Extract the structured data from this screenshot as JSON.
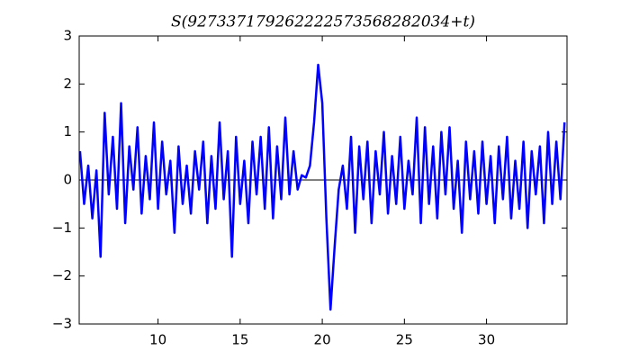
{
  "chart_data": {
    "type": "line",
    "title": "S(927337179262222573568282034+t)",
    "x": [
      5.25,
      5.5,
      5.75,
      6.0,
      6.25,
      6.5,
      6.75,
      7.0,
      7.25,
      7.5,
      7.75,
      8.0,
      8.25,
      8.5,
      8.75,
      9.0,
      9.25,
      9.5,
      9.75,
      10.0,
      10.25,
      10.5,
      10.75,
      11.0,
      11.25,
      11.5,
      11.75,
      12.0,
      12.25,
      12.5,
      12.75,
      13.0,
      13.25,
      13.5,
      13.75,
      14.0,
      14.25,
      14.5,
      14.75,
      15.0,
      15.25,
      15.5,
      15.75,
      16.0,
      16.25,
      16.5,
      16.75,
      17.0,
      17.25,
      17.5,
      17.75,
      18.0,
      18.25,
      18.5,
      18.75,
      19.0,
      19.25,
      19.5,
      19.75,
      20.0,
      20.25,
      20.5,
      20.75,
      21.0,
      21.25,
      21.5,
      21.75,
      22.0,
      22.25,
      22.5,
      22.75,
      23.0,
      23.25,
      23.5,
      23.75,
      24.0,
      24.25,
      24.5,
      24.75,
      25.0,
      25.25,
      25.5,
      25.75,
      26.0,
      26.25,
      26.5,
      26.75,
      27.0,
      27.25,
      27.5,
      27.75,
      28.0,
      28.25,
      28.5,
      28.75,
      29.0,
      29.25,
      29.5,
      29.75,
      30.0,
      30.25,
      30.5,
      30.75,
      31.0,
      31.25,
      31.5,
      31.75,
      32.0,
      32.25,
      32.5,
      32.75,
      33.0,
      33.25,
      33.5,
      33.75,
      34.0,
      34.25,
      34.5,
      34.75
    ],
    "series": [
      {
        "color": "#0000ff",
        "values": [
          0.6,
          -0.5,
          0.3,
          -0.8,
          0.2,
          -1.6,
          1.4,
          -0.3,
          0.9,
          -0.6,
          1.6,
          -0.9,
          0.7,
          -0.2,
          1.1,
          -0.7,
          0.5,
          -0.4,
          1.2,
          -0.6,
          0.8,
          -0.3,
          0.4,
          -1.1,
          0.7,
          -0.5,
          0.3,
          -0.7,
          0.6,
          -0.2,
          0.8,
          -0.9,
          0.5,
          -0.6,
          1.2,
          -0.4,
          0.6,
          -1.6,
          0.9,
          -0.5,
          0.4,
          -0.9,
          0.8,
          -0.3,
          0.9,
          -0.6,
          1.1,
          -0.8,
          0.7,
          -0.4,
          1.3,
          -0.3,
          0.6,
          -0.2,
          0.1,
          0.05,
          0.3,
          1.2,
          2.4,
          1.6,
          -0.8,
          -2.7,
          -1.4,
          -0.2,
          0.3,
          -0.6,
          0.9,
          -1.1,
          0.7,
          -0.4,
          0.8,
          -0.9,
          0.6,
          -0.3,
          1.0,
          -0.7,
          0.5,
          -0.5,
          0.9,
          -0.6,
          0.4,
          -0.3,
          1.3,
          -0.9,
          1.1,
          -0.5,
          0.7,
          -0.8,
          1.0,
          -0.3,
          1.1,
          -0.6,
          0.4,
          -1.1,
          0.8,
          -0.4,
          0.6,
          -0.7,
          0.8,
          -0.5,
          0.5,
          -0.9,
          0.7,
          -0.4,
          0.9,
          -0.8,
          0.4,
          -0.6,
          0.8,
          -1.0,
          0.6,
          -0.3,
          0.7,
          -0.9,
          1.0,
          -0.5,
          0.8,
          -0.4,
          1.2
        ]
      }
    ],
    "xlim": [
      5.2,
      34.9
    ],
    "xticks": [
      10,
      15,
      20,
      25,
      30
    ],
    "ylim": [
      -3,
      3
    ],
    "yticks": [
      {
        "value": -3,
        "label": "−3"
      },
      {
        "value": -2,
        "label": "−2"
      },
      {
        "value": -1,
        "label": "−1"
      },
      0,
      1,
      2,
      3
    ],
    "zero_line": true
  }
}
